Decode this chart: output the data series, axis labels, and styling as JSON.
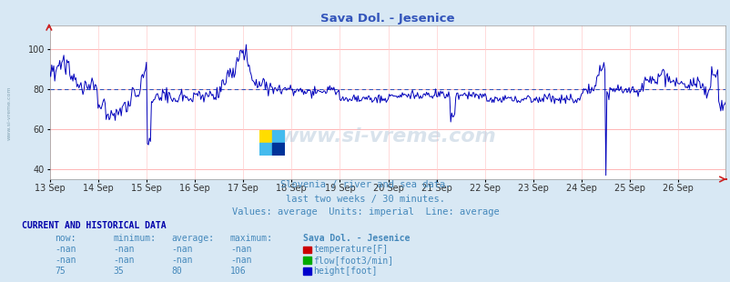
{
  "title": "Sava Dol. - Jesenice",
  "title_color": "#3355bb",
  "bg_color": "#d8e8f4",
  "plot_bg_color": "#ffffff",
  "ylim": [
    35,
    112
  ],
  "yticks": [
    40,
    60,
    80,
    100
  ],
  "avg_line": 80,
  "avg_line_color": "#3355bb",
  "grid_color_h": "#ffaaaa",
  "grid_color_v": "#ffcccc",
  "line_color": "#0000bb",
  "line_width": 0.7,
  "x_labels": [
    "13 Sep",
    "14 Sep",
    "15 Sep",
    "16 Sep",
    "17 Sep",
    "18 Sep",
    "19 Sep",
    "20 Sep",
    "21 Sep",
    "22 Sep",
    "23 Sep",
    "24 Sep",
    "25 Sep",
    "26 Sep"
  ],
  "watermark": "www.si-vreme.com",
  "subtitle1": "Slovenia / river and sea data.",
  "subtitle2": "last two weeks / 30 minutes.",
  "subtitle3": "Values: average  Units: imperial  Line: average",
  "subtitle_color": "#4488bb",
  "table_title": "CURRENT AND HISTORICAL DATA",
  "table_header": [
    "now:",
    "minimum:",
    "average:",
    "maximum:",
    "Sava Dol. - Jesenice"
  ],
  "table_rows": [
    [
      "-nan",
      "-nan",
      "-nan",
      "-nan",
      "temperature[F]",
      "#cc0000"
    ],
    [
      "-nan",
      "-nan",
      "-nan",
      "-nan",
      "flow[foot3/min]",
      "#00aa00"
    ],
    [
      "75",
      "35",
      "80",
      "106",
      "height[foot]",
      "#0000cc"
    ]
  ],
  "table_color": "#4488bb",
  "table_header_color": "#4488bb",
  "table_label_color": "#0000aa",
  "n_points": 672
}
